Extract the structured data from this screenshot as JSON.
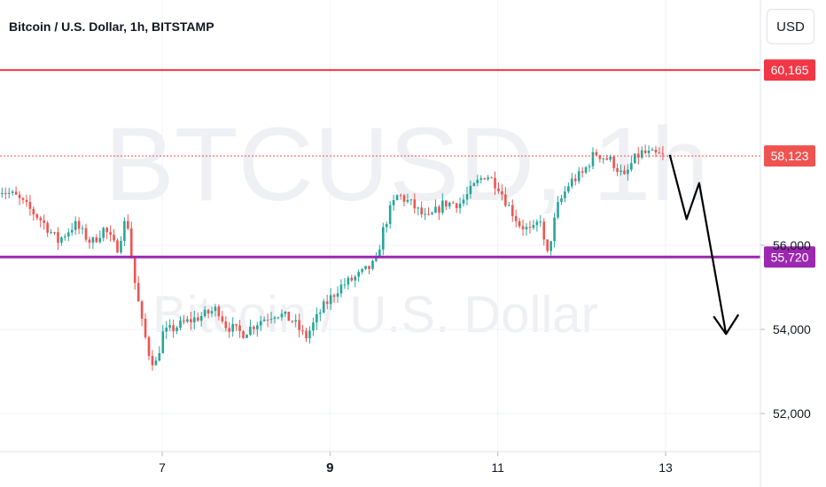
{
  "header": {
    "title": "Bitcoin / U.S. Dollar, 1h, BITSTAMP",
    "currency": "USD"
  },
  "watermark": {
    "symbol": "BTCUSD, 1h",
    "name": "Bitcoin / U.S. Dollar"
  },
  "colors": {
    "up": "#26a69a",
    "down": "#ef5350",
    "resistance": "#f23645",
    "support": "#9c27b0",
    "projection": "#000000"
  },
  "chart_data": {
    "type": "candlestick",
    "title": "Bitcoin / U.S. Dollar, 1h, BITSTAMP",
    "x_ticks": [
      {
        "label": "7",
        "bold": false
      },
      {
        "label": "9",
        "bold": true
      },
      {
        "label": "11",
        "bold": false
      },
      {
        "label": "13",
        "bold": false
      }
    ],
    "y_ticks": [
      "52,000",
      "54,000",
      "56,000"
    ],
    "ylim": [
      51000,
      61700
    ],
    "x_range_days": [
      5.05,
      14.2
    ],
    "price_lines": [
      {
        "name": "resistance",
        "value": 60165,
        "label": "60,165",
        "style": "solid"
      },
      {
        "name": "current",
        "value": 58123,
        "label": "58,123",
        "style": "dotted"
      },
      {
        "name": "support",
        "value": 55720,
        "label": "55,720",
        "style": "solid"
      }
    ],
    "price_path": [
      [
        5.05,
        57400
      ],
      [
        5.3,
        57150
      ],
      [
        5.6,
        56600
      ],
      [
        5.8,
        56100
      ],
      [
        6.0,
        56500
      ],
      [
        6.2,
        56050
      ],
      [
        6.35,
        56400
      ],
      [
        6.5,
        55900
      ],
      [
        6.62,
        56700
      ],
      [
        6.7,
        55300
      ],
      [
        6.8,
        54150
      ],
      [
        6.9,
        53300
      ],
      [
        6.97,
        53200
      ],
      [
        7.05,
        53900
      ],
      [
        7.3,
        54150
      ],
      [
        7.55,
        54350
      ],
      [
        7.7,
        54500
      ],
      [
        7.8,
        54100
      ],
      [
        8.0,
        53900
      ],
      [
        8.2,
        54200
      ],
      [
        8.4,
        54400
      ],
      [
        8.6,
        54200
      ],
      [
        8.75,
        53800
      ],
      [
        8.95,
        54500
      ],
      [
        9.15,
        55000
      ],
      [
        9.4,
        55300
      ],
      [
        9.6,
        55600
      ],
      [
        9.65,
        56200
      ],
      [
        9.75,
        56800
      ],
      [
        9.85,
        57200
      ],
      [
        10.0,
        57000
      ],
      [
        10.2,
        56600
      ],
      [
        10.4,
        57000
      ],
      [
        10.6,
        57000
      ],
      [
        10.8,
        57500
      ],
      [
        10.9,
        57700
      ],
      [
        11.05,
        57400
      ],
      [
        11.15,
        57000
      ],
      [
        11.3,
        56500
      ],
      [
        11.45,
        56300
      ],
      [
        11.55,
        56650
      ],
      [
        11.62,
        55650
      ],
      [
        11.75,
        56900
      ],
      [
        11.9,
        57500
      ],
      [
        12.05,
        57700
      ],
      [
        12.2,
        58200
      ],
      [
        12.4,
        58000
      ],
      [
        12.55,
        57600
      ],
      [
        12.65,
        58000
      ],
      [
        12.75,
        58200
      ],
      [
        12.9,
        58150
      ],
      [
        13.0,
        58123
      ]
    ],
    "projection_path": [
      [
        13.05,
        58150
      ],
      [
        13.25,
        56620
      ],
      [
        13.4,
        57480
      ],
      [
        13.72,
        53890
      ]
    ]
  }
}
